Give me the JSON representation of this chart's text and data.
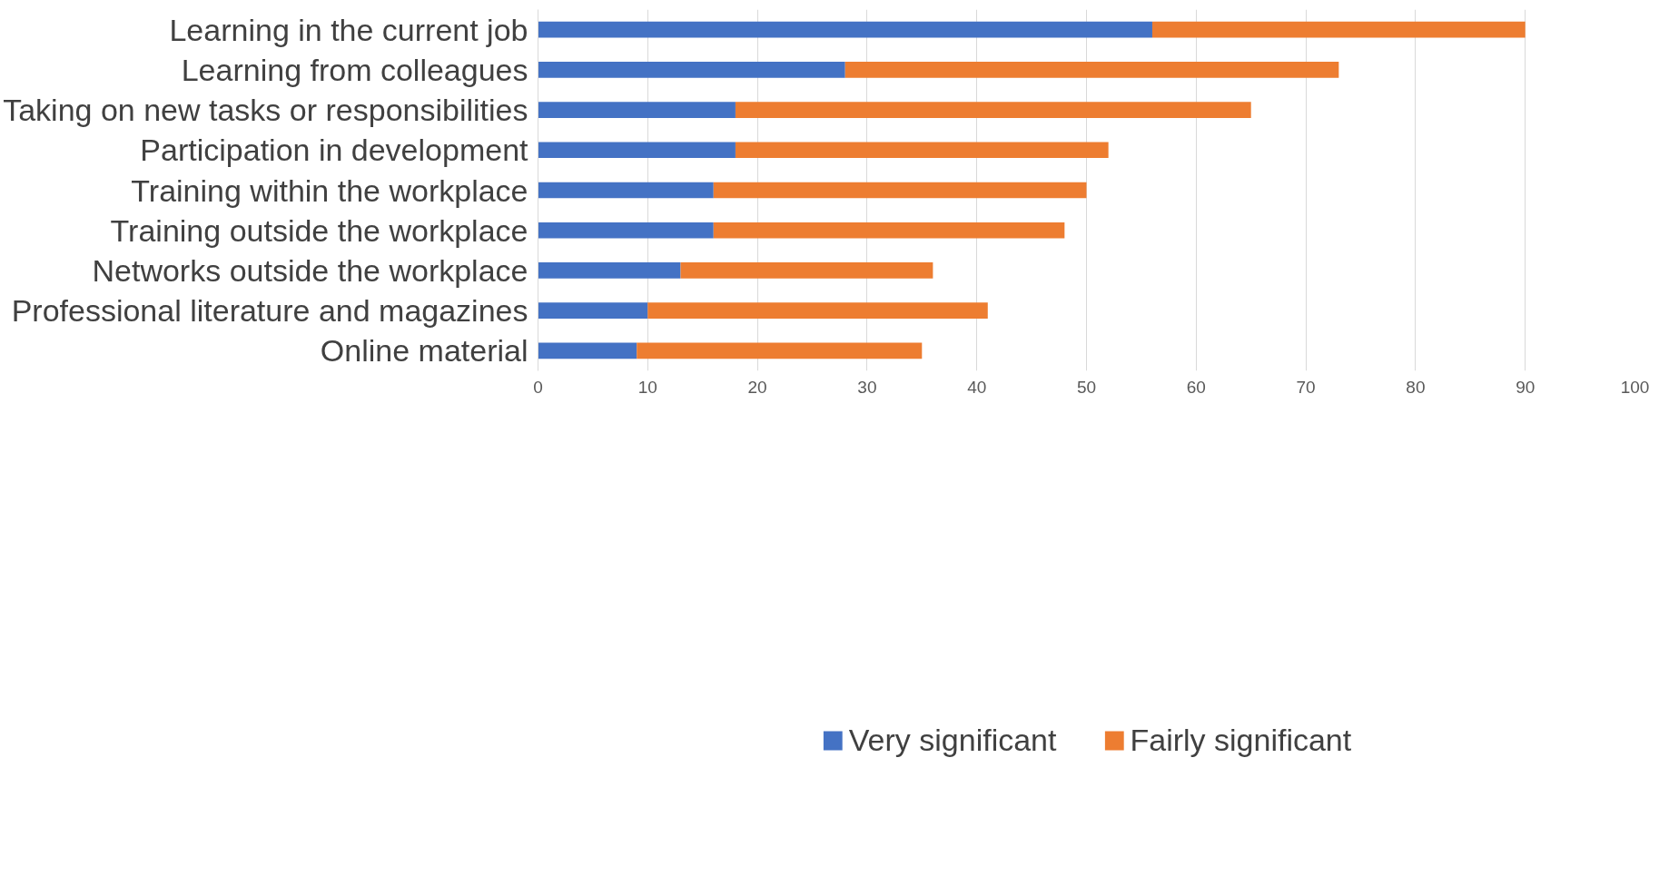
{
  "chart_data": {
    "type": "bar",
    "orientation": "horizontal",
    "stacked": true,
    "categories": [
      "Learning in the current job",
      "Learning from colleagues",
      "Taking on new tasks or responsibilities",
      "Participation in development",
      "Training within the workplace",
      "Training outside the workplace",
      "Networks outside the workplace",
      "Professional literature and magazines",
      "Online material"
    ],
    "series": [
      {
        "name": "Very significant",
        "color": "#4472c4",
        "values": [
          56,
          28,
          18,
          18,
          16,
          16,
          13,
          10,
          9
        ]
      },
      {
        "name": "Fairly significant",
        "color": "#ed7d31",
        "values": [
          34,
          45,
          47,
          34,
          34,
          32,
          23,
          31,
          26
        ]
      }
    ],
    "xlim": [
      0,
      100
    ],
    "xticks": [
      0,
      10,
      20,
      30,
      40,
      50,
      60,
      70,
      80,
      90,
      100
    ],
    "grid": "x",
    "legend": "bottom"
  }
}
